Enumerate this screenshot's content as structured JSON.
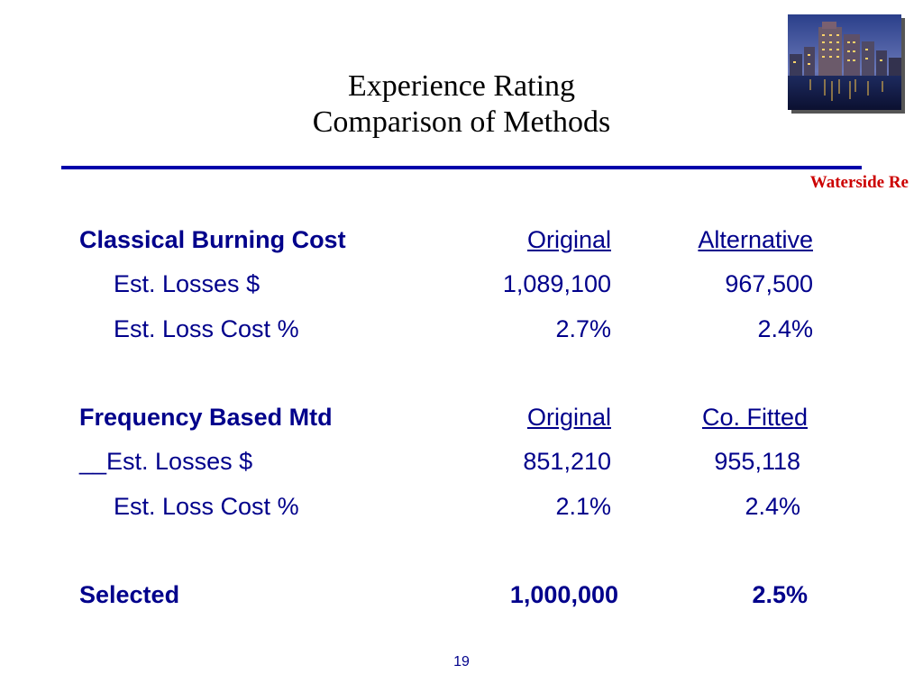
{
  "slide": {
    "title_line1": "Experience Rating",
    "title_line2": "Comparison of Methods",
    "brand": "Waterside Re",
    "page_number": "19"
  },
  "colors": {
    "text": "#00008b",
    "rule": "#0000aa",
    "brand": "#cc0000"
  },
  "classical": {
    "heading": "Classical Burning Cost",
    "col1": "Original",
    "col2": "Alternative",
    "losses_label": "Est. Losses $",
    "losses_1": "1,089,100",
    "losses_2": "967,500",
    "cost_label": "Est. Loss Cost %",
    "cost_1": "2.7%",
    "cost_2": "2.4%"
  },
  "frequency": {
    "heading": "Frequency Based Mtd",
    "col1": "Original",
    "col2": "Co. Fitted",
    "losses_label": "__Est. Losses $",
    "losses_1": "851,210",
    "losses_2": "955,118",
    "cost_label": "Est. Loss Cost %",
    "cost_1": "2.1%",
    "cost_2": "2.4%"
  },
  "selected": {
    "label": "Selected",
    "value_1": "1,000,000",
    "value_2": "2.5%"
  }
}
